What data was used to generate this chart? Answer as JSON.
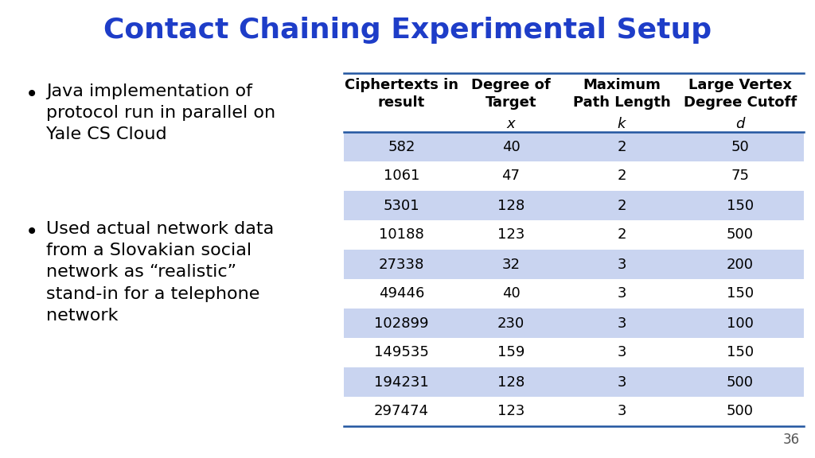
{
  "title": "Contact Chaining Experimental Setup",
  "title_color": "#1E3DC8",
  "title_fontsize": 26,
  "background_color": "#FFFFFF",
  "bullet_points": [
    "Java implementation of\nprotocol run in parallel on\nYale CS Cloud",
    "Used actual network data\nfrom a Slovakian social\nnetwork as “realistic”\nstand-in for a telephone\nnetwork"
  ],
  "bullet_fontsize": 16,
  "col_headers_line1": [
    "Ciphertexts in\nresult",
    "Degree of\nTarget",
    "Maximum\nPath Length",
    "Large Vertex\nDegree Cutoff"
  ],
  "col_headers_line2": [
    "",
    "x",
    "k",
    "d"
  ],
  "table_data": [
    [
      "582",
      "40",
      "2",
      "50"
    ],
    [
      "1061",
      "47",
      "2",
      "75"
    ],
    [
      "5301",
      "128",
      "2",
      "150"
    ],
    [
      "10188",
      "123",
      "2",
      "500"
    ],
    [
      "27338",
      "32",
      "3",
      "200"
    ],
    [
      "49446",
      "40",
      "3",
      "150"
    ],
    [
      "102899",
      "230",
      "3",
      "100"
    ],
    [
      "149535",
      "159",
      "3",
      "150"
    ],
    [
      "194231",
      "128",
      "3",
      "500"
    ],
    [
      "297474",
      "123",
      "3",
      "500"
    ]
  ],
  "row_highlight_color": "#C9D4F0",
  "row_normal_color": "#FFFFFF",
  "header_line_color": "#2155A0",
  "table_text_color": "#000000",
  "header_text_color": "#000000",
  "header_fontsize": 13,
  "table_fontsize": 13,
  "slide_number": "36",
  "slide_number_color": "#555555"
}
